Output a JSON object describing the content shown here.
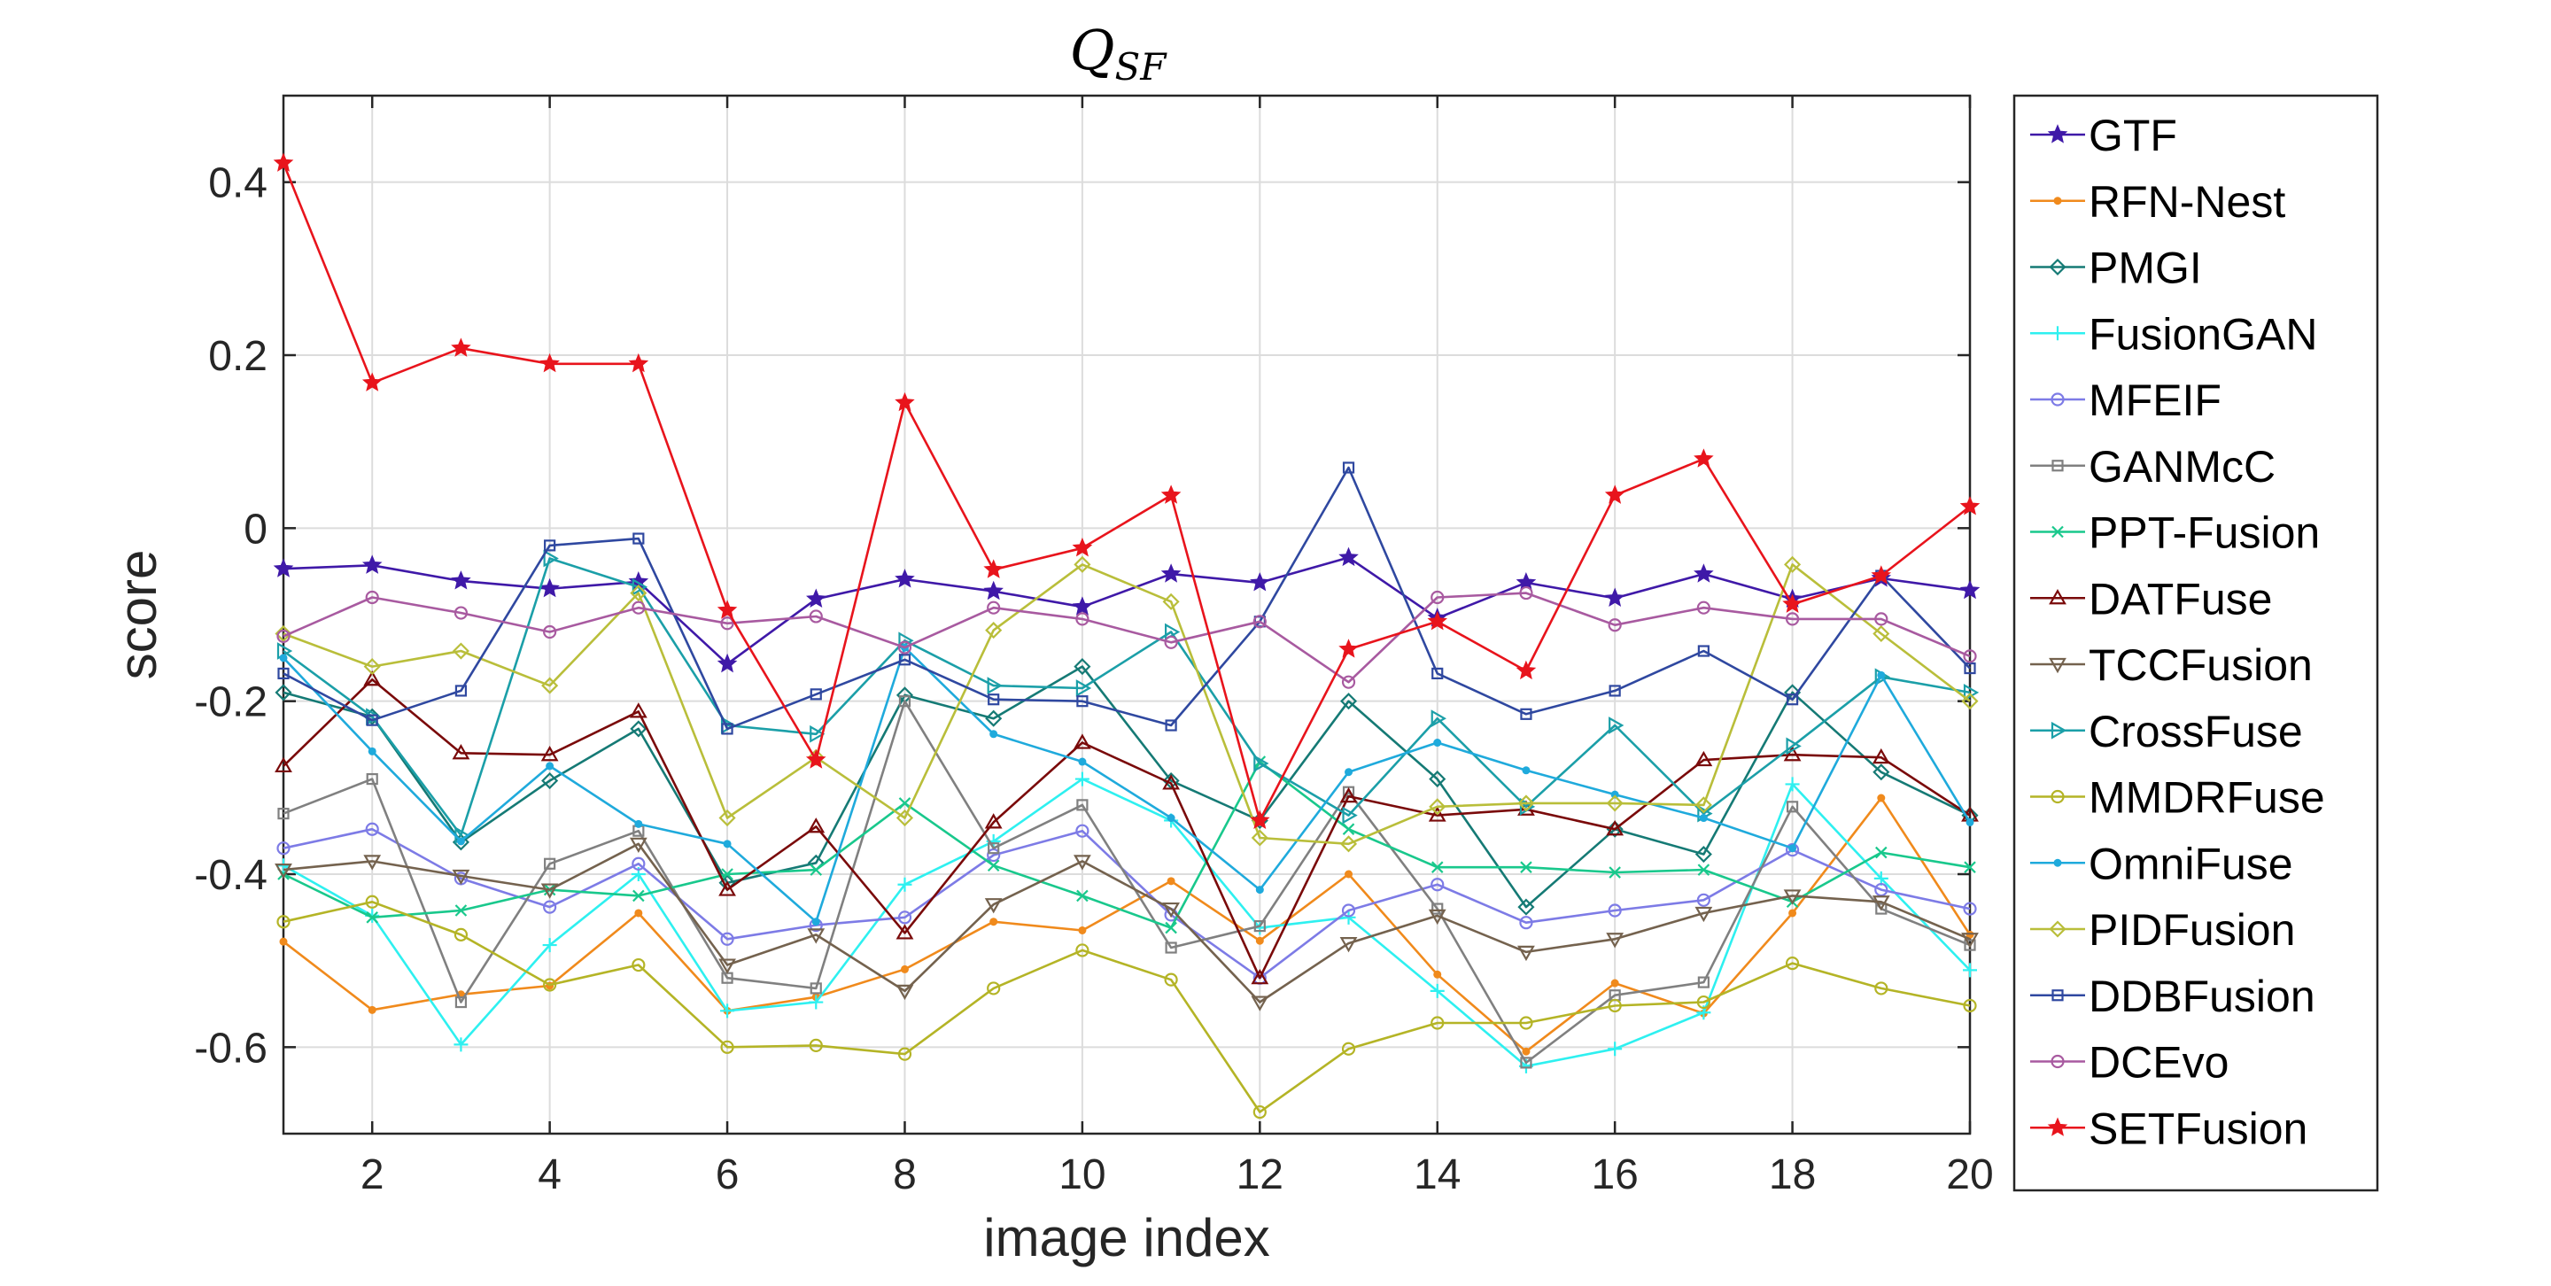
{
  "chart_data": {
    "type": "line",
    "title": "Q",
    "title_subscript": "SF",
    "xlabel": "image index",
    "ylabel": "score",
    "xlim": [
      1,
      20
    ],
    "ylim": [
      -0.7,
      0.5
    ],
    "x_ticks": [
      2,
      4,
      6,
      8,
      10,
      12,
      14,
      16,
      18,
      20
    ],
    "y_ticks": [
      -0.6,
      -0.4,
      -0.2,
      0,
      0.2,
      0.4
    ],
    "y_tick_labels": [
      "-0.6",
      "-0.4",
      "-0.2",
      "0",
      "0.2",
      "0.4"
    ],
    "grid": true,
    "legend_position": "outside-right",
    "x": [
      1,
      2,
      3,
      4,
      5,
      6,
      7,
      8,
      9,
      10,
      11,
      12,
      13,
      14,
      15,
      16,
      17,
      18,
      19,
      20
    ],
    "series": [
      {
        "name": "GTF",
        "color": "#3f19a8",
        "marker": "star",
        "values": [
          -0.047,
          -0.043,
          -0.061,
          -0.07,
          -0.062,
          -0.157,
          -0.082,
          -0.059,
          -0.073,
          -0.091,
          -0.053,
          -0.063,
          -0.034,
          -0.104,
          -0.063,
          -0.081,
          -0.053,
          -0.082,
          -0.058,
          -0.072
        ]
      },
      {
        "name": "RFN-Nest",
        "color": "#f08a1c",
        "marker": "point",
        "values": [
          -0.478,
          -0.557,
          -0.539,
          -0.529,
          -0.445,
          -0.558,
          -0.542,
          -0.51,
          -0.455,
          -0.465,
          -0.408,
          -0.477,
          -0.4,
          -0.516,
          -0.605,
          -0.526,
          -0.561,
          -0.445,
          -0.312,
          -0.47
        ]
      },
      {
        "name": "PMGI",
        "color": "#157a75",
        "marker": "diamond",
        "values": [
          -0.19,
          -0.218,
          -0.363,
          -0.292,
          -0.232,
          -0.41,
          -0.387,
          -0.193,
          -0.22,
          -0.16,
          -0.292,
          -0.338,
          -0.2,
          -0.29,
          -0.438,
          -0.348,
          -0.377,
          -0.19,
          -0.282,
          -0.332
        ]
      },
      {
        "name": "FusionGAN",
        "color": "#2ef0f0",
        "marker": "plus",
        "values": [
          -0.39,
          -0.448,
          -0.597,
          -0.482,
          -0.4,
          -0.558,
          -0.548,
          -0.412,
          -0.362,
          -0.29,
          -0.338,
          -0.462,
          -0.45,
          -0.535,
          -0.622,
          -0.602,
          -0.56,
          -0.296,
          -0.405,
          -0.511
        ]
      },
      {
        "name": "MFEIF",
        "color": "#7d7be6",
        "marker": "circle",
        "values": [
          -0.37,
          -0.348,
          -0.405,
          -0.438,
          -0.388,
          -0.475,
          -0.459,
          -0.45,
          -0.378,
          -0.35,
          -0.447,
          -0.52,
          -0.442,
          -0.412,
          -0.456,
          -0.442,
          -0.43,
          -0.372,
          -0.418,
          -0.44
        ]
      },
      {
        "name": "GANMcC",
        "color": "#808080",
        "marker": "square",
        "values": [
          -0.33,
          -0.29,
          -0.548,
          -0.388,
          -0.35,
          -0.52,
          -0.532,
          -0.2,
          -0.37,
          -0.32,
          -0.485,
          -0.46,
          -0.305,
          -0.44,
          -0.618,
          -0.54,
          -0.525,
          -0.322,
          -0.44,
          -0.482
        ]
      },
      {
        "name": "PPT-Fusion",
        "color": "#19c88c",
        "marker": "x",
        "values": [
          -0.4,
          -0.45,
          -0.442,
          -0.418,
          -0.425,
          -0.4,
          -0.395,
          -0.318,
          -0.39,
          -0.425,
          -0.462,
          -0.27,
          -0.348,
          -0.392,
          -0.392,
          -0.398,
          -0.395,
          -0.432,
          -0.375,
          -0.392
        ]
      },
      {
        "name": "DATFuse",
        "color": "#7a0a0a",
        "marker": "triangle-up",
        "values": [
          -0.275,
          -0.175,
          -0.26,
          -0.262,
          -0.212,
          -0.418,
          -0.345,
          -0.468,
          -0.34,
          -0.248,
          -0.295,
          -0.52,
          -0.31,
          -0.332,
          -0.325,
          -0.348,
          -0.268,
          -0.262,
          -0.265,
          -0.332
        ]
      },
      {
        "name": "TCCFusion",
        "color": "#74624e",
        "marker": "triangle-down",
        "values": [
          -0.395,
          -0.385,
          -0.402,
          -0.418,
          -0.365,
          -0.505,
          -0.47,
          -0.535,
          -0.435,
          -0.385,
          -0.44,
          -0.548,
          -0.48,
          -0.448,
          -0.49,
          -0.475,
          -0.445,
          -0.425,
          -0.432,
          -0.475
        ]
      },
      {
        "name": "CrossFuse",
        "color": "#1b9fa8",
        "marker": "triangle-right",
        "values": [
          -0.142,
          -0.218,
          -0.355,
          -0.035,
          -0.068,
          -0.228,
          -0.238,
          -0.13,
          -0.182,
          -0.185,
          -0.12,
          -0.272,
          -0.332,
          -0.22,
          -0.322,
          -0.228,
          -0.33,
          -0.252,
          -0.172,
          -0.19
        ]
      },
      {
        "name": "MMDRFuse",
        "color": "#b4b426",
        "marker": "circle",
        "values": [
          -0.455,
          -0.432,
          -0.47,
          -0.528,
          -0.505,
          -0.6,
          -0.598,
          -0.608,
          -0.532,
          -0.488,
          -0.522,
          -0.675,
          -0.602,
          -0.572,
          -0.572,
          -0.552,
          -0.548,
          -0.503,
          -0.532,
          -0.552
        ]
      },
      {
        "name": "OmniFuse",
        "color": "#1faadc",
        "marker": "point",
        "values": [
          -0.15,
          -0.258,
          -0.362,
          -0.275,
          -0.342,
          -0.365,
          -0.455,
          -0.138,
          -0.238,
          -0.27,
          -0.335,
          -0.418,
          -0.282,
          -0.248,
          -0.28,
          -0.308,
          -0.335,
          -0.37,
          -0.17,
          -0.34
        ]
      },
      {
        "name": "PIDFusion",
        "color": "#b9be3a",
        "marker": "diamond",
        "values": [
          -0.122,
          -0.16,
          -0.142,
          -0.182,
          -0.075,
          -0.335,
          -0.265,
          -0.335,
          -0.118,
          -0.042,
          -0.085,
          -0.358,
          -0.365,
          -0.322,
          -0.318,
          -0.318,
          -0.32,
          -0.042,
          -0.122,
          -0.2
        ]
      },
      {
        "name": "DDBFusion",
        "color": "#2f48a0",
        "marker": "square",
        "values": [
          -0.168,
          -0.222,
          -0.188,
          -0.02,
          -0.012,
          -0.232,
          -0.192,
          -0.152,
          -0.198,
          -0.2,
          -0.228,
          -0.108,
          0.07,
          -0.168,
          -0.215,
          -0.188,
          -0.142,
          -0.198,
          -0.055,
          -0.162
        ]
      },
      {
        "name": "DCEvo",
        "color": "#a85aa0",
        "marker": "circle",
        "values": [
          -0.125,
          -0.08,
          -0.098,
          -0.12,
          -0.092,
          -0.11,
          -0.102,
          -0.138,
          -0.092,
          -0.105,
          -0.132,
          -0.108,
          -0.178,
          -0.08,
          -0.075,
          -0.112,
          -0.092,
          -0.105,
          -0.105,
          -0.148
        ]
      },
      {
        "name": "SETFusion",
        "color": "#e8141c",
        "marker": "star",
        "values": [
          0.422,
          0.168,
          0.208,
          0.19,
          0.19,
          -0.095,
          -0.268,
          0.145,
          -0.048,
          -0.023,
          0.038,
          -0.338,
          -0.14,
          -0.108,
          -0.165,
          0.038,
          0.08,
          -0.088,
          -0.055,
          0.025
        ]
      }
    ]
  }
}
